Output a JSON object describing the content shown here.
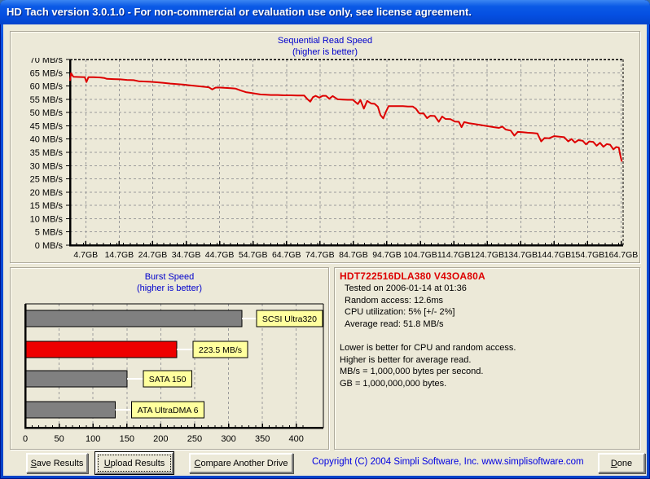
{
  "window": {
    "title": "HD Tach version 3.0.1.0  - For non-commercial or evaluation use only, see license agreement."
  },
  "chart_data": [
    {
      "type": "line",
      "title": "Sequential Read Speed",
      "subtitle": "(higher is better)",
      "ylim": [
        0,
        70
      ],
      "ytick_step": 5,
      "ytick_suffix": " MB/s",
      "xlim": [
        0,
        165.3
      ],
      "xticks": [
        4.7,
        14.7,
        24.7,
        34.7,
        44.7,
        54.7,
        64.7,
        74.7,
        84.7,
        94.7,
        104.7,
        114.7,
        124.7,
        134.7,
        144.7,
        154.7,
        164.7
      ],
      "xtick_suffix": "GB",
      "minor_tick_step_x": 2,
      "grid": true,
      "series": [
        {
          "name": "sequential-read-speed",
          "color": "#dd0000",
          "points": [
            [
              0,
              62.0
            ],
            [
              0.3,
              64.8
            ],
            [
              1,
              63.5
            ],
            [
              2.5,
              63.4
            ],
            [
              4.4,
              63.3
            ],
            [
              4.9,
              61.5
            ],
            [
              5.5,
              63.3
            ],
            [
              7,
              63.3
            ],
            [
              9,
              63.2
            ],
            [
              10.3,
              63.0
            ],
            [
              11,
              62.7
            ],
            [
              13,
              62.6
            ],
            [
              15,
              62.5
            ],
            [
              17,
              62.3
            ],
            [
              19,
              62.2
            ],
            [
              20.5,
              61.8
            ],
            [
              22,
              61.7
            ],
            [
              24,
              61.6
            ],
            [
              26,
              61.4
            ],
            [
              28,
              61.2
            ],
            [
              30,
              60.9
            ],
            [
              32,
              60.7
            ],
            [
              34,
              60.5
            ],
            [
              35.5,
              60.3
            ],
            [
              37,
              60.1
            ],
            [
              38.5,
              59.9
            ],
            [
              40,
              59.7
            ],
            [
              41.5,
              59.5
            ],
            [
              42.5,
              58.7
            ],
            [
              43.5,
              59.4
            ],
            [
              45,
              59.4
            ],
            [
              46.5,
              59.3
            ],
            [
              48,
              59.2
            ],
            [
              49.5,
              59.0
            ],
            [
              51,
              58.3
            ],
            [
              52.5,
              57.7
            ],
            [
              54,
              57.4
            ],
            [
              55.5,
              57.1
            ],
            [
              57,
              56.8
            ],
            [
              58.5,
              56.7
            ],
            [
              60,
              56.6
            ],
            [
              62,
              56.6
            ],
            [
              64,
              56.5
            ],
            [
              66,
              56.5
            ],
            [
              68,
              56.4
            ],
            [
              70,
              56.4
            ],
            [
              71,
              55.0
            ],
            [
              71.8,
              54.1
            ],
            [
              72.6,
              55.8
            ],
            [
              73.4,
              56.3
            ],
            [
              74.5,
              55.6
            ],
            [
              75.5,
              56.3
            ],
            [
              76.5,
              56.3
            ],
            [
              77.5,
              55.2
            ],
            [
              78.5,
              56.2
            ],
            [
              80,
              55.0
            ],
            [
              81.5,
              54.9
            ],
            [
              83,
              54.8
            ],
            [
              84.5,
              54.8
            ],
            [
              86,
              53.2
            ],
            [
              86.8,
              54.7
            ],
            [
              87.8,
              51.5
            ],
            [
              88.8,
              54.4
            ],
            [
              90,
              53.4
            ],
            [
              91,
              53.3
            ],
            [
              92,
              52.2
            ],
            [
              92.8,
              49.0
            ],
            [
              93.6,
              47.8
            ],
            [
              94.4,
              50.3
            ],
            [
              95.2,
              52.4
            ],
            [
              96.5,
              52.4
            ],
            [
              98,
              52.4
            ],
            [
              99.5,
              52.4
            ],
            [
              101,
              52.3
            ],
            [
              102.4,
              52.3
            ],
            [
              103.4,
              51.4
            ],
            [
              104.4,
              49.7
            ],
            [
              105.7,
              49.6
            ],
            [
              106.7,
              47.9
            ],
            [
              107.7,
              48.8
            ],
            [
              109,
              48.7
            ],
            [
              110.2,
              46.5
            ],
            [
              111.2,
              48.5
            ],
            [
              112.2,
              47.6
            ],
            [
              113.7,
              47.5
            ],
            [
              115,
              46.6
            ],
            [
              116.2,
              46.5
            ],
            [
              117,
              44.5
            ],
            [
              117.8,
              46.4
            ],
            [
              119.2,
              46.0
            ],
            [
              120.7,
              45.7
            ],
            [
              122.2,
              45.4
            ],
            [
              123.7,
              45.1
            ],
            [
              125.2,
              44.8
            ],
            [
              126.7,
              44.5
            ],
            [
              128.2,
              44.2
            ],
            [
              129.2,
              44.7
            ],
            [
              130.2,
              43.6
            ],
            [
              131.7,
              43.2
            ],
            [
              132.8,
              41.3
            ],
            [
              133.8,
              42.7
            ],
            [
              135.2,
              42.6
            ],
            [
              136.7,
              42.4
            ],
            [
              138.2,
              42.3
            ],
            [
              139.7,
              42.1
            ],
            [
              140.8,
              39.1
            ],
            [
              141.8,
              40.4
            ],
            [
              143.2,
              40.3
            ],
            [
              144.7,
              41.1
            ],
            [
              146.2,
              40.9
            ],
            [
              147.7,
              40.7
            ],
            [
              148.9,
              39.1
            ],
            [
              149.9,
              40.0
            ],
            [
              150.9,
              38.7
            ],
            [
              151.9,
              39.6
            ],
            [
              153.2,
              39.4
            ],
            [
              154.2,
              38.0
            ],
            [
              155.2,
              39.1
            ],
            [
              156.4,
              38.9
            ],
            [
              157.4,
              37.5
            ],
            [
              158.4,
              38.6
            ],
            [
              159.4,
              37.1
            ],
            [
              160.4,
              38.1
            ],
            [
              161.4,
              37.9
            ],
            [
              162.4,
              36.1
            ],
            [
              163.2,
              37.0
            ],
            [
              164,
              36.8
            ],
            [
              164.4,
              34.2
            ],
            [
              164.9,
              31.5
            ]
          ]
        }
      ]
    },
    {
      "type": "bar",
      "title": "Burst Speed",
      "subtitle": "(higher is better)",
      "orientation": "horizontal",
      "xlim": [
        0,
        440
      ],
      "xticks": [
        0,
        50,
        100,
        150,
        200,
        250,
        300,
        350,
        400
      ],
      "minor_tick_step": 10,
      "label_box_color": "#ffff9e",
      "bars": [
        {
          "label": "SCSI Ultra320",
          "value": 320,
          "color": "#808080"
        },
        {
          "label": "223.5 MB/s",
          "value": 223.5,
          "color": "#ee0000"
        },
        {
          "label": "SATA 150",
          "value": 150,
          "color": "#808080"
        },
        {
          "label": "ATA UltraDMA 6",
          "value": 133,
          "color": "#808080"
        }
      ]
    }
  ],
  "info_panel": {
    "drive": "HDT722516DLA380 V43OA80A",
    "details": [
      "Tested on 2006-01-14 at 01:36",
      "Random access: 12.6ms",
      "CPU utilization: 5% [+/- 2%]",
      "Average read: 51.8 MB/s"
    ],
    "notes": [
      "Lower is better for CPU and random access.",
      "Higher is better for average read.",
      "MB/s = 1,000,000 bytes per second.",
      "GB = 1,000,000,000 bytes."
    ]
  },
  "buttons": {
    "save": {
      "mnemonic": "S",
      "rest": "ave Results"
    },
    "upload": {
      "mnemonic": "U",
      "rest": "pload Results"
    },
    "compare": {
      "mnemonic": "C",
      "rest": "ompare Another Drive"
    },
    "done": {
      "mnemonic": "D",
      "rest": "one"
    }
  },
  "footer": {
    "copyright": "Copyright (C) 2004 Simpli Software, Inc. www.simplisoftware.com"
  },
  "colors": {
    "line_red": "#dd0000",
    "bar_gray": "#808080",
    "bar_red": "#ee0000",
    "label_yellow": "#ffff9e",
    "chart_title_blue": "#0000cc",
    "drive_title_red": "#dd0000",
    "copyright_blue": "#0000e0",
    "titlebar_blue": "#0550e2",
    "client_bg": "#ece9d8",
    "gridline_gray": "#9b9b9b"
  }
}
